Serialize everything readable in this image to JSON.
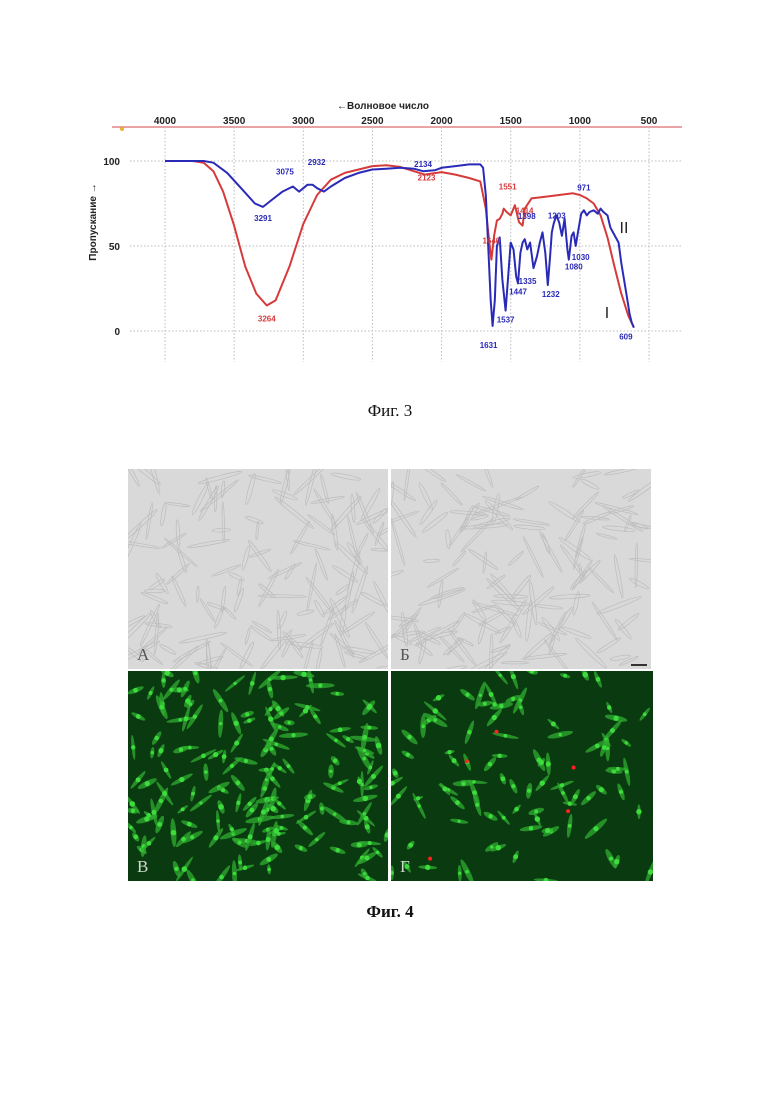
{
  "figure3": {
    "caption": "Фиг. 3",
    "chart_data": {
      "type": "line",
      "xlabel": "←Волновое число",
      "ylabel": "Пропускание →",
      "xlim": [
        4000,
        500
      ],
      "ylim": [
        0,
        100
      ],
      "x_ticks": [
        4000,
        3500,
        3000,
        2500,
        2000,
        1500,
        1000,
        500
      ],
      "y_ticks": [
        100,
        50,
        0
      ],
      "grid": true,
      "series": [
        {
          "name": "I",
          "color": "#d63a3a",
          "x": [
            4000,
            3800,
            3720,
            3650,
            3580,
            3500,
            3420,
            3340,
            3264,
            3200,
            3100,
            3000,
            2900,
            2800,
            2700,
            2600,
            2500,
            2400,
            2300,
            2200,
            2123,
            2000,
            1900,
            1800,
            1720,
            1680,
            1655,
            1640,
            1620,
            1600,
            1580,
            1560,
            1551,
            1530,
            1500,
            1470,
            1440,
            1414,
            1398,
            1350,
            1250,
            1150,
            1050,
            1000,
            950,
            900,
            850,
            800,
            750,
            700,
            650,
            609
          ],
          "y": [
            100,
            100,
            99,
            94,
            82,
            62,
            38,
            22,
            15,
            18,
            38,
            63,
            80,
            89,
            93,
            95,
            97,
            97.5,
            96.5,
            94,
            92,
            93.5,
            92,
            90,
            88,
            72,
            52,
            42,
            56,
            65,
            66,
            69,
            72,
            70,
            68,
            74,
            64,
            62,
            72,
            78,
            79,
            80,
            81,
            80,
            78,
            75,
            68,
            55,
            38,
            22,
            9,
            2
          ]
        },
        {
          "name": "II",
          "color": "#2a2ab8",
          "x": [
            4000,
            3800,
            3720,
            3650,
            3550,
            3450,
            3350,
            3291,
            3230,
            3150,
            3075,
            3030,
            3000,
            2970,
            2932,
            2900,
            2850,
            2800,
            2700,
            2600,
            2500,
            2400,
            2300,
            2200,
            2134,
            2050,
            2000,
            1900,
            1800,
            1720,
            1700,
            1680,
            1660,
            1645,
            1631,
            1615,
            1600,
            1580,
            1560,
            1537,
            1520,
            1500,
            1480,
            1460,
            1447,
            1430,
            1414,
            1398,
            1380,
            1360,
            1335,
            1310,
            1290,
            1270,
            1250,
            1232,
            1215,
            1203,
            1190,
            1170,
            1150,
            1130,
            1110,
            1090,
            1080,
            1060,
            1045,
            1030,
            1010,
            990,
            971,
            950,
            930,
            900,
            870,
            850,
            830,
            800,
            780,
            760,
            740,
            720,
            700,
            680,
            660,
            640,
            625,
            609
          ],
          "y": [
            100,
            100,
            100,
            99,
            93,
            84,
            75,
            73,
            77,
            82,
            85,
            82,
            84,
            86,
            86,
            84,
            82,
            85,
            90,
            93,
            95,
            95.5,
            96,
            95.5,
            94,
            94.5,
            96,
            97,
            98,
            98,
            96,
            80,
            45,
            18,
            3,
            18,
            50,
            55,
            30,
            12,
            30,
            52,
            48,
            32,
            28,
            46,
            52,
            54,
            48,
            52,
            37,
            44,
            52,
            58,
            46,
            27,
            44,
            58,
            63,
            68,
            64,
            56,
            66,
            48,
            42,
            56,
            58,
            50,
            60,
            69,
            71,
            68,
            70,
            71,
            69,
            72,
            70,
            68,
            61,
            58,
            55,
            52,
            40,
            30,
            20,
            10,
            5,
            2
          ]
        }
      ],
      "annotations": [
        {
          "text": "3264",
          "x": 3264,
          "y": 15,
          "series": "I"
        },
        {
          "text": "2123",
          "x": 2123,
          "y": 92,
          "series": "I"
        },
        {
          "text": "1640",
          "x": 1640,
          "y": 42,
          "series": "I"
        },
        {
          "text": "1551",
          "x": 1551,
          "y": 72,
          "series": "I"
        },
        {
          "text": "1414",
          "x": 1414,
          "y": 62,
          "series": "I"
        },
        {
          "text": "3291",
          "x": 3291,
          "y": 73,
          "series": "II"
        },
        {
          "text": "3075",
          "x": 3075,
          "y": 85,
          "series": "II"
        },
        {
          "text": "2932",
          "x": 2932,
          "y": 86,
          "series": "II"
        },
        {
          "text": "2134",
          "x": 2134,
          "y": 94,
          "series": "II"
        },
        {
          "text": "1631",
          "x": 1631,
          "y": 3,
          "series": "II"
        },
        {
          "text": "1537",
          "x": 1537,
          "y": 12,
          "series": "II"
        },
        {
          "text": "1447",
          "x": 1447,
          "y": 28,
          "series": "II"
        },
        {
          "text": "1398",
          "x": 1398,
          "y": 54,
          "series": "II"
        },
        {
          "text": "1335",
          "x": 1335,
          "y": 37,
          "series": "II"
        },
        {
          "text": "1232",
          "x": 1232,
          "y": 27,
          "series": "II"
        },
        {
          "text": "1203",
          "x": 1203,
          "y": 58,
          "series": "II"
        },
        {
          "text": "1080",
          "x": 1080,
          "y": 42,
          "series": "II"
        },
        {
          "text": "1030",
          "x": 1030,
          "y": 50,
          "series": "II"
        },
        {
          "text": "971",
          "x": 971,
          "y": 71,
          "series": "II"
        },
        {
          "text": "609",
          "x": 609,
          "y": 2,
          "series": "II"
        }
      ],
      "curve_labels": [
        {
          "text": "I",
          "series": "I"
        },
        {
          "text": "II",
          "series": "II"
        }
      ]
    }
  },
  "figure4": {
    "caption": "Фиг. 4",
    "panels": [
      {
        "id": "A",
        "label": "А",
        "kind": "bright-field"
      },
      {
        "id": "B",
        "label": "Б",
        "kind": "bright-field"
      },
      {
        "id": "V",
        "label": "В",
        "kind": "fluorescence"
      },
      {
        "id": "G",
        "label": "Г",
        "kind": "fluorescence"
      }
    ],
    "colors": {
      "live_stain": "#3ddc3d",
      "dead_stain": "#ff2020",
      "background_fluor": "#0a3a10",
      "background_bf": "#d9d9d9"
    }
  }
}
